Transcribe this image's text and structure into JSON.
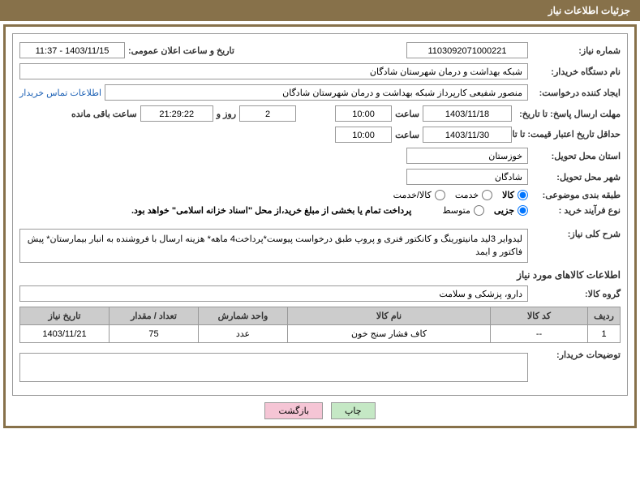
{
  "header": {
    "title": "جزئیات اطلاعات نیاز"
  },
  "fields": {
    "need_number_label": "شماره نیاز:",
    "need_number": "1103092071000221",
    "announce_label": "تاریخ و ساعت اعلان عمومی:",
    "announce_value": "1403/11/15 - 11:37",
    "buyer_org_label": "نام دستگاه خریدار:",
    "buyer_org": "شبکه بهداشت و درمان شهرستان شادگان",
    "requester_label": "ایجاد کننده درخواست:",
    "requester": "منصور شفیعی کارپرداز شبکه بهداشت و درمان شهرستان شادگان",
    "buyer_contact_link": "اطلاعات تماس خریدار",
    "reply_deadline_label": "مهلت ارسال پاسخ: تا تاریخ:",
    "reply_date": "1403/11/18",
    "time_label": "ساعت",
    "reply_time": "10:00",
    "days_num": "2",
    "days_and": "روز و",
    "countdown": "21:29:22",
    "remain_label": "ساعت باقی مانده",
    "price_valid_label": "حداقل تاریخ اعتبار قیمت: تا تاریخ:",
    "price_valid_date": "1403/11/30",
    "price_valid_time": "10:00",
    "province_label": "استان محل تحویل:",
    "province": "خوزستان",
    "city_label": "شهر محل تحویل:",
    "city": "شادگان",
    "category_label": "طبقه بندی موضوعی:",
    "cat_goods": "کالا",
    "cat_service": "خدمت",
    "cat_both": "کالا/خدمت",
    "process_label": "نوع فرآیند خرید :",
    "proc_partial": "جزیی",
    "proc_medium": "متوسط",
    "process_note": "پرداخت تمام یا بخشی از مبلغ خرید،از محل \"اسناد خزانه اسلامی\" خواهد بود.",
    "desc_label": "شرح کلی نیاز:",
    "desc_text": "لیدوایر 3لید مانیتورینگ و کانکتور فنری و پروپ طبق درخواست پیوست*پرداخت4 ماهه* هزینه ارسال با فروشنده به انبار بیمارستان* پیش فاکتور و ایمد",
    "items_section": "اطلاعات کالاهای مورد نیاز",
    "group_label": "گروه کالا:",
    "group_value": "دارو، پزشکی و سلامت",
    "buyer_notes_label": "توضیحات خریدار:"
  },
  "table": {
    "columns": [
      "ردیف",
      "کد کالا",
      "نام کالا",
      "واحد شمارش",
      "تعداد / مقدار",
      "تاریخ نیاز"
    ],
    "col_widths": [
      "40px",
      "120px",
      "auto",
      "110px",
      "110px",
      "110px"
    ],
    "rows": [
      [
        "1",
        "--",
        "کاف فشار سنج خون",
        "عدد",
        "75",
        "1403/11/21"
      ]
    ]
  },
  "buttons": {
    "print": "چاپ",
    "back": "بازگشت"
  },
  "colors": {
    "header_bg": "#87714a",
    "border": "#999999",
    "th_bg": "#cccccc",
    "link": "#1a5fb4",
    "btn_green": "#c5e8c5",
    "btn_pink": "#f5c5d5"
  }
}
